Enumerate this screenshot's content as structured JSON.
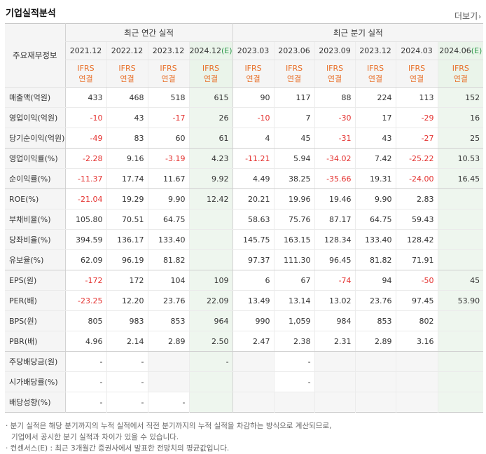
{
  "title": "기업실적분석",
  "more_label": "더보기",
  "corner_label": "주요재무정보",
  "group_annual": "최근 연간 실적",
  "group_quarter": "최근 분기 실적",
  "ifrs_top": "IFRS",
  "ifrs_bottom": "연결",
  "columns": [
    "2021.12",
    "2022.12",
    "2023.12",
    "2024.12",
    "2023.03",
    "2023.06",
    "2023.09",
    "2023.12",
    "2024.03",
    "2024.06"
  ],
  "estimate_mark": "(E)",
  "rows": [
    {
      "label": "매출액(억원)",
      "values": [
        "433",
        "468",
        "518",
        "615",
        "90",
        "117",
        "88",
        "224",
        "113",
        "152"
      ]
    },
    {
      "label": "영업이익(억원)",
      "values": [
        "-10",
        "43",
        "-17",
        "26",
        "-10",
        "7",
        "-30",
        "17",
        "-29",
        "16"
      ]
    },
    {
      "label": "당기순이익(억원)",
      "values": [
        "-49",
        "83",
        "60",
        "61",
        "4",
        "45",
        "-31",
        "43",
        "-27",
        "25"
      ]
    },
    {
      "label": "영업이익률(%)",
      "values": [
        "-2.28",
        "9.16",
        "-3.19",
        "4.23",
        "-11.21",
        "5.94",
        "-34.02",
        "7.42",
        "-25.22",
        "10.53"
      ]
    },
    {
      "label": "순이익률(%)",
      "values": [
        "-11.37",
        "17.74",
        "11.67",
        "9.92",
        "4.49",
        "38.25",
        "-35.66",
        "19.31",
        "-24.00",
        "16.45"
      ]
    },
    {
      "label": "ROE(%)",
      "values": [
        "-21.04",
        "19.29",
        "9.90",
        "12.42",
        "20.21",
        "19.96",
        "19.46",
        "9.90",
        "2.83",
        ""
      ]
    },
    {
      "label": "부채비율(%)",
      "values": [
        "105.80",
        "70.51",
        "64.75",
        "",
        "58.63",
        "75.76",
        "87.17",
        "64.75",
        "59.43",
        ""
      ]
    },
    {
      "label": "당좌비율(%)",
      "values": [
        "394.59",
        "136.17",
        "133.40",
        "",
        "145.75",
        "163.15",
        "128.34",
        "133.40",
        "128.42",
        ""
      ]
    },
    {
      "label": "유보율(%)",
      "values": [
        "62.09",
        "96.19",
        "81.82",
        "",
        "97.37",
        "111.30",
        "96.45",
        "81.82",
        "71.91",
        ""
      ]
    },
    {
      "label": "EPS(원)",
      "values": [
        "-172",
        "172",
        "104",
        "109",
        "6",
        "67",
        "-74",
        "94",
        "-50",
        "45"
      ]
    },
    {
      "label": "PER(배)",
      "values": [
        "-23.25",
        "12.20",
        "23.76",
        "22.09",
        "13.49",
        "13.14",
        "13.02",
        "23.76",
        "97.45",
        "53.90"
      ]
    },
    {
      "label": "BPS(원)",
      "values": [
        "805",
        "983",
        "853",
        "964",
        "990",
        "1,059",
        "984",
        "853",
        "802",
        ""
      ]
    },
    {
      "label": "PBR(배)",
      "values": [
        "4.96",
        "2.14",
        "2.89",
        "2.50",
        "2.47",
        "2.38",
        "2.31",
        "2.89",
        "3.16",
        ""
      ]
    },
    {
      "label": "주당배당금(원)",
      "values": [
        "-",
        "-",
        "",
        "-",
        "",
        "-",
        "",
        "",
        "",
        ""
      ]
    },
    {
      "label": "시가배당률(%)",
      "values": [
        "-",
        "-",
        "",
        "",
        "",
        "-",
        "",
        "",
        "",
        ""
      ]
    },
    {
      "label": "배당성향(%)",
      "values": [
        "-",
        "-",
        "-",
        "",
        "",
        "",
        "",
        "",
        "",
        ""
      ]
    }
  ],
  "notes": [
    "· 분기 실적은 해당 분기까지의 누적 실적에서 직전 분기까지의 누적 실적을 차감하는 방식으로 계산되므로,",
    "기업에서 공시한 분기 실적과 차이가 있을 수 있습니다.",
    "· 컨센서스(E) : 최근 3개월간 증권사에서 발표한 전망치의 평균값입니다."
  ]
}
